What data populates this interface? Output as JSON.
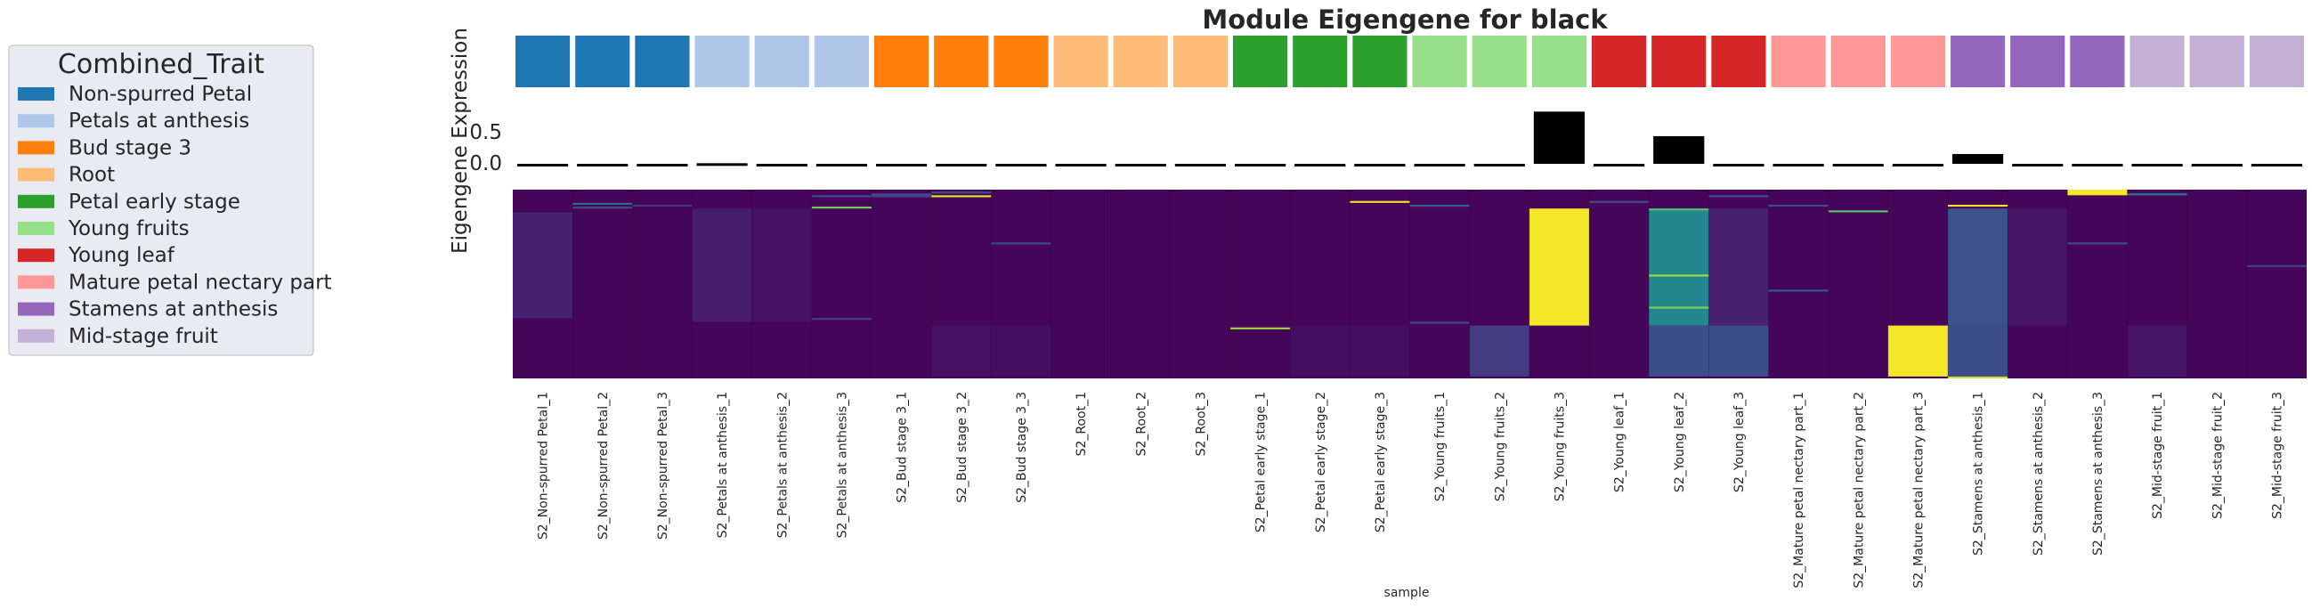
{
  "chart_data": {
    "type": "heatmap",
    "title": "Module Eigengene for black",
    "ylabel": "Eigengene Expression",
    "xlabel": "sample",
    "yticks": [
      "0.5",
      "0.0"
    ],
    "ylim": [
      -0.1,
      0.95
    ],
    "legend": {
      "title": "Combined_Trait",
      "placement": "left",
      "entries": [
        {
          "label": "Non-spurred Petal",
          "color": "#1f77b4"
        },
        {
          "label": "Petals at anthesis",
          "color": "#aec7e8"
        },
        {
          "label": "Bud stage 3",
          "color": "#ff7f0e"
        },
        {
          "label": "Root",
          "color": "#ffbb78"
        },
        {
          "label": "Petal early stage",
          "color": "#2ca02c"
        },
        {
          "label": "Young fruits",
          "color": "#98df8a"
        },
        {
          "label": "Young leaf",
          "color": "#d62728"
        },
        {
          "label": "Mature petal nectary part",
          "color": "#ff9896"
        },
        {
          "label": "Stamens at anthesis",
          "color": "#9467bd"
        },
        {
          "label": "Mid-stage fruit",
          "color": "#c5b0d5"
        }
      ]
    },
    "samples": [
      {
        "name": "S2_Non-spurred Petal_1",
        "group": 0,
        "eigengene": -0.03
      },
      {
        "name": "S2_Non-spurred Petal_2",
        "group": 0,
        "eigengene": -0.03
      },
      {
        "name": "S2_Non-spurred Petal_3",
        "group": 0,
        "eigengene": -0.03
      },
      {
        "name": "S2_Petals at anthesis_1",
        "group": 1,
        "eigengene": 0.01
      },
      {
        "name": "S2_Petals at anthesis_2",
        "group": 1,
        "eigengene": -0.01
      },
      {
        "name": "S2_Petals at anthesis_3",
        "group": 1,
        "eigengene": -0.03
      },
      {
        "name": "S2_Bud stage 3_1",
        "group": 2,
        "eigengene": -0.03
      },
      {
        "name": "S2_Bud stage 3_2",
        "group": 2,
        "eigengene": -0.03
      },
      {
        "name": "S2_Bud stage 3_3",
        "group": 2,
        "eigengene": -0.03
      },
      {
        "name": "S2_Root_1",
        "group": 3,
        "eigengene": -0.03
      },
      {
        "name": "S2_Root_2",
        "group": 3,
        "eigengene": -0.03
      },
      {
        "name": "S2_Root_3",
        "group": 3,
        "eigengene": -0.03
      },
      {
        "name": "S2_Petal early stage_1",
        "group": 4,
        "eigengene": -0.03
      },
      {
        "name": "S2_Petal early stage_2",
        "group": 4,
        "eigengene": -0.03
      },
      {
        "name": "S2_Petal early stage_3",
        "group": 4,
        "eigengene": -0.03
      },
      {
        "name": "S2_Young fruits_1",
        "group": 5,
        "eigengene": -0.03
      },
      {
        "name": "S2_Young fruits_2",
        "group": 5,
        "eigengene": -0.02
      },
      {
        "name": "S2_Young fruits_3",
        "group": 5,
        "eigengene": 0.85
      },
      {
        "name": "S2_Young leaf_1",
        "group": 6,
        "eigengene": -0.02
      },
      {
        "name": "S2_Young leaf_2",
        "group": 6,
        "eigengene": 0.45
      },
      {
        "name": "S2_Young leaf_3",
        "group": 6,
        "eigengene": 0.0
      },
      {
        "name": "S2_Mature petal nectary part_1",
        "group": 7,
        "eigengene": -0.03
      },
      {
        "name": "S2_Mature petal nectary part_2",
        "group": 7,
        "eigengene": -0.03
      },
      {
        "name": "S2_Mature petal nectary part_3",
        "group": 7,
        "eigengene": -0.01
      },
      {
        "name": "S2_Stamens at anthesis_1",
        "group": 8,
        "eigengene": 0.16
      },
      {
        "name": "S2_Stamens at anthesis_2",
        "group": 8,
        "eigengene": -0.01
      },
      {
        "name": "S2_Stamens at anthesis_3",
        "group": 8,
        "eigengene": -0.03
      },
      {
        "name": "S2_Mid-stage fruit_1",
        "group": 9,
        "eigengene": -0.03
      },
      {
        "name": "S2_Mid-stage fruit_2",
        "group": 9,
        "eigengene": -0.03
      },
      {
        "name": "S2_Mid-stage fruit_3",
        "group": 9,
        "eigengene": -0.03
      }
    ],
    "heatmap": {
      "colormap": "viridis",
      "range": [
        0,
        1
      ],
      "n_genes": 100,
      "base_value": 0.02,
      "blocks": [
        {
          "cols": [
            0
          ],
          "rows": [
            12,
            68
          ],
          "value": 0.12
        },
        {
          "cols": [
            3
          ],
          "rows": [
            10,
            70
          ],
          "value": 0.1
        },
        {
          "cols": [
            4
          ],
          "rows": [
            10,
            70
          ],
          "value": 0.06
        },
        {
          "cols": [
            7
          ],
          "rows": [
            72,
            99
          ],
          "value": 0.06
        },
        {
          "cols": [
            8
          ],
          "rows": [
            72,
            99
          ],
          "value": 0.05
        },
        {
          "cols": [
            13
          ],
          "rows": [
            72,
            99
          ],
          "value": 0.05
        },
        {
          "cols": [
            14
          ],
          "rows": [
            72,
            99
          ],
          "value": 0.05
        },
        {
          "cols": [
            16
          ],
          "rows": [
            72,
            99
          ],
          "value": 0.22
        },
        {
          "cols": [
            17
          ],
          "rows": [
            10,
            72
          ],
          "value": 0.99
        },
        {
          "cols": [
            19
          ],
          "rows": [
            10,
            72
          ],
          "value": 0.58
        },
        {
          "cols": [
            19
          ],
          "rows": [
            72,
            99
          ],
          "value": 0.3
        },
        {
          "cols": [
            20
          ],
          "rows": [
            10,
            72
          ],
          "value": 0.12
        },
        {
          "cols": [
            20
          ],
          "rows": [
            72,
            99
          ],
          "value": 0.3
        },
        {
          "cols": [
            23
          ],
          "rows": [
            72,
            99
          ],
          "value": 0.99
        },
        {
          "cols": [
            24
          ],
          "rows": [
            10,
            72
          ],
          "value": 0.32
        },
        {
          "cols": [
            24
          ],
          "rows": [
            72,
            99
          ],
          "value": 0.3
        },
        {
          "cols": [
            25
          ],
          "rows": [
            10,
            72
          ],
          "value": 0.07
        },
        {
          "cols": [
            27
          ],
          "rows": [
            72,
            99
          ],
          "value": 0.07
        }
      ],
      "lines": [
        {
          "col": 1,
          "row": 7,
          "value": 0.45
        },
        {
          "col": 1,
          "row": 9,
          "value": 0.3
        },
        {
          "col": 2,
          "row": 8,
          "value": 0.2
        },
        {
          "col": 5,
          "row": 3,
          "value": 0.3
        },
        {
          "col": 5,
          "row": 9,
          "value": 0.85
        },
        {
          "col": 5,
          "row": 68,
          "value": 0.25
        },
        {
          "col": 6,
          "row": 2,
          "value": 0.3
        },
        {
          "col": 6,
          "row": 3,
          "value": 0.25
        },
        {
          "col": 7,
          "row": 3,
          "value": 0.99
        },
        {
          "col": 7,
          "row": 1,
          "value": 0.3
        },
        {
          "col": 8,
          "row": 28,
          "value": 0.3
        },
        {
          "col": 12,
          "row": 73,
          "value": 0.9
        },
        {
          "col": 14,
          "row": 6,
          "value": 0.99
        },
        {
          "col": 15,
          "row": 70,
          "value": 0.3
        },
        {
          "col": 15,
          "row": 8,
          "value": 0.4
        },
        {
          "col": 18,
          "row": 6,
          "value": 0.3
        },
        {
          "col": 19,
          "row": 10,
          "value": 0.8
        },
        {
          "col": 19,
          "row": 45,
          "value": 0.9
        },
        {
          "col": 19,
          "row": 62,
          "value": 0.85
        },
        {
          "col": 20,
          "row": 3,
          "value": 0.3
        },
        {
          "col": 21,
          "row": 8,
          "value": 0.3
        },
        {
          "col": 21,
          "row": 53,
          "value": 0.35
        },
        {
          "col": 22,
          "row": 11,
          "value": 0.8
        },
        {
          "col": 24,
          "row": 8,
          "value": 0.99
        },
        {
          "col": 24,
          "row": 99,
          "value": 0.95
        },
        {
          "col": 26,
          "row": 28,
          "value": 0.3
        },
        {
          "col": 27,
          "row": 2,
          "value": 0.5
        },
        {
          "col": 29,
          "row": 40,
          "value": 0.25
        }
      ],
      "patches": [
        {
          "col": 26,
          "rows": [
            0,
            3
          ],
          "value": 0.99
        }
      ]
    }
  }
}
